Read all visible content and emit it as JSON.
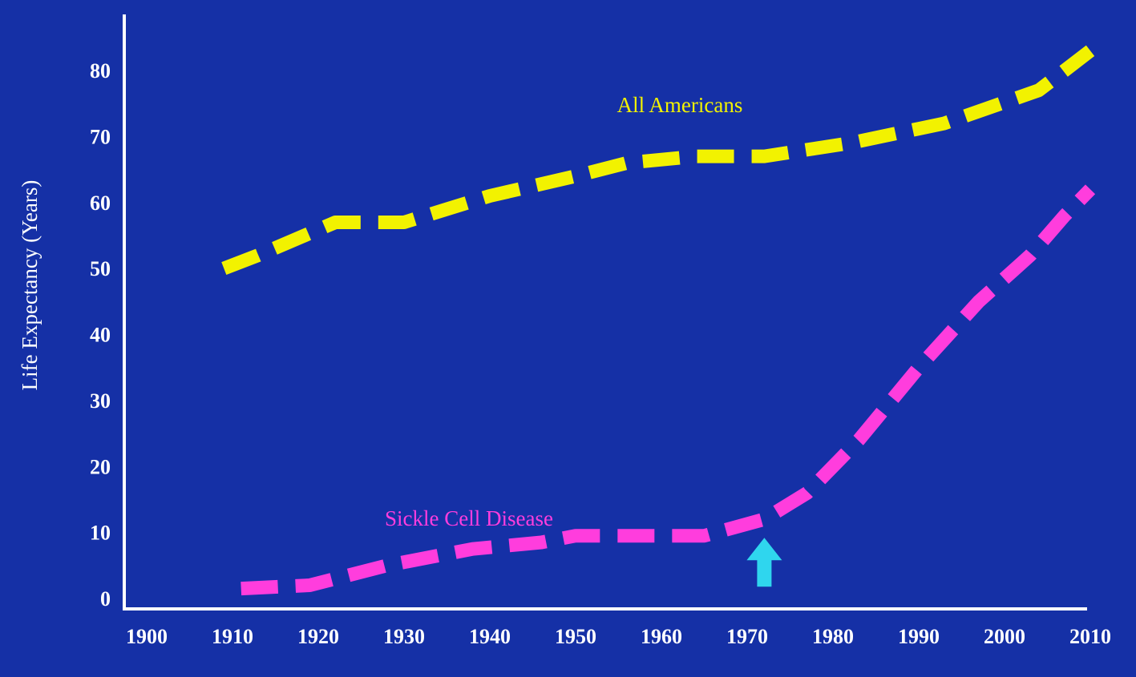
{
  "chart_data": {
    "type": "line",
    "ylabel": "Life Expectancy (Years)",
    "xlabel": "",
    "xlim": [
      1900,
      2010
    ],
    "ylim": [
      0,
      85
    ],
    "x_ticks": [
      1900,
      1910,
      1920,
      1930,
      1940,
      1950,
      1960,
      1970,
      1980,
      1990,
      2000,
      2010
    ],
    "y_ticks": [
      0,
      10,
      20,
      30,
      40,
      50,
      60,
      70,
      80
    ],
    "grid": false,
    "legend": "none",
    "series": [
      {
        "name": "All Americans",
        "color": "#f2f200",
        "points": [
          [
            1909,
            50
          ],
          [
            1913,
            52
          ],
          [
            1922,
            57
          ],
          [
            1930,
            57
          ],
          [
            1940,
            61
          ],
          [
            1950,
            64
          ],
          [
            1956,
            66
          ],
          [
            1964,
            67
          ],
          [
            1972,
            67
          ],
          [
            1982,
            69
          ],
          [
            1993,
            72
          ],
          [
            2004,
            77
          ],
          [
            2010,
            83
          ]
        ]
      },
      {
        "name": "Sickle Cell Disease",
        "color": "#ff3ddd",
        "points": [
          [
            1911,
            1.5
          ],
          [
            1919,
            2
          ],
          [
            1928,
            5
          ],
          [
            1938,
            7.5
          ],
          [
            1946,
            8.5
          ],
          [
            1950,
            9.5
          ],
          [
            1957,
            9.5
          ],
          [
            1965,
            9.5
          ],
          [
            1972,
            12
          ],
          [
            1977,
            16
          ],
          [
            1983,
            24
          ],
          [
            1990,
            35
          ],
          [
            1997,
            45
          ],
          [
            2003,
            52
          ],
          [
            2007,
            58
          ],
          [
            2010,
            62
          ]
        ]
      }
    ],
    "annotations": [
      {
        "type": "arrow",
        "color": "#2fd6ee",
        "x": 1972,
        "y_from": 1.8,
        "y_to": 9.2,
        "direction": "up"
      }
    ]
  }
}
